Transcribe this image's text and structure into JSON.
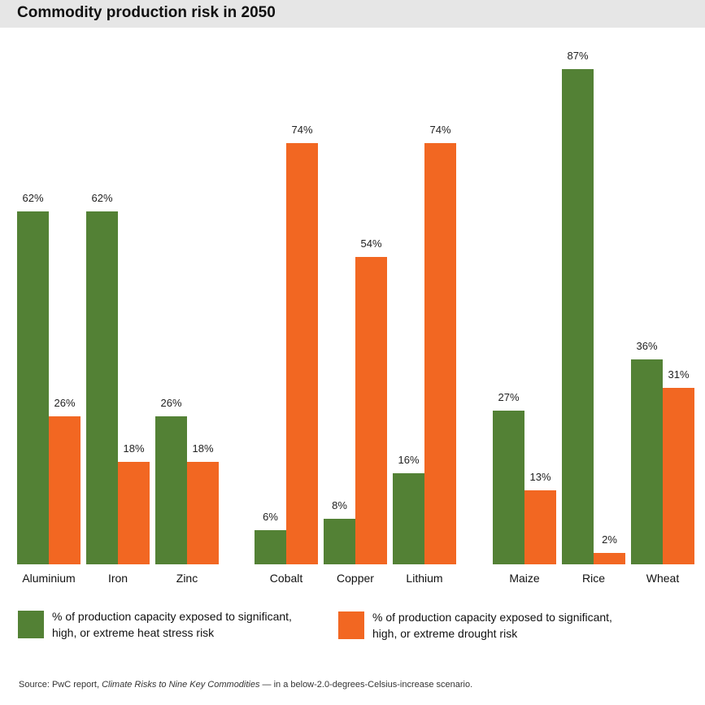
{
  "chart_data": {
    "type": "bar",
    "title": "Commodity production risk in 2050",
    "categories": [
      "Aluminium",
      "Iron",
      "Zinc",
      "Cobalt",
      "Copper",
      "Lithium",
      "Maize",
      "Rice",
      "Wheat"
    ],
    "groups": [
      [
        "Aluminium",
        "Iron",
        "Zinc"
      ],
      [
        "Cobalt",
        "Copper",
        "Lithium"
      ],
      [
        "Maize",
        "Rice",
        "Wheat"
      ]
    ],
    "series": [
      {
        "name": "% of production capacity exposed to significant, high, or extreme heat stress risk",
        "color": "#538135",
        "values": [
          62,
          62,
          26,
          6,
          8,
          16,
          27,
          87,
          36
        ]
      },
      {
        "name": "% of production capacity exposed to significant, high, or extreme drought risk",
        "color": "#f26722",
        "values": [
          26,
          18,
          18,
          74,
          54,
          74,
          13,
          2,
          31
        ]
      }
    ],
    "value_suffix": "%",
    "ylim": [
      0,
      100
    ],
    "legend_position": "bottom"
  },
  "legend": {
    "heat_line1": "% of production capacity exposed to significant,",
    "heat_line2": "high, or extreme heat stress risk",
    "drought_line1": "% of production capacity exposed to significant,",
    "drought_line2": "high, or extreme drought risk"
  },
  "source": {
    "prefix": "Source: PwC report, ",
    "report": "Climate Risks to Nine Key Commodities",
    "suffix": " — in a below-2.0-degrees-Celsius-increase scenario."
  },
  "colors": {
    "heat": "#538135",
    "drought": "#f26722"
  }
}
